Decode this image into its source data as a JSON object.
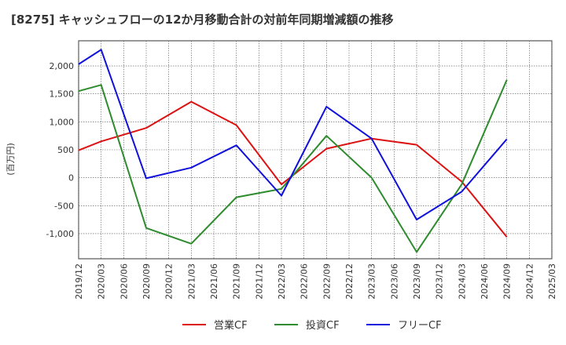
{
  "chart_data": {
    "type": "line",
    "title": "[8275]  キャッシュフローの12か月移動合計の対前年同期増減額の推移",
    "ylabel": "(百万円)",
    "xlabel": "",
    "categories": [
      "2019/12",
      "2020/03",
      "2020/06",
      "2020/09",
      "2020/12",
      "2021/03",
      "2021/06",
      "2021/09",
      "2021/12",
      "2022/03",
      "2022/06",
      "2022/09",
      "2022/12",
      "2023/03",
      "2023/06",
      "2023/09",
      "2023/12",
      "2024/03",
      "2024/06",
      "2024/09",
      "2024/12",
      "2025/03"
    ],
    "ylim": [
      -1450,
      2450
    ],
    "yticks": [
      -1000,
      -500,
      0,
      500,
      1000,
      1500,
      2000
    ],
    "ytick_labels": [
      "-1,000",
      "-500",
      "0",
      "500",
      "1,000",
      "1,500",
      "2,000"
    ],
    "grid": true,
    "legend_position": "bottom",
    "series": [
      {
        "name": "営業CF",
        "color": "#dd1111",
        "x": [
          "2019/12",
          "2020/03",
          "2020/09",
          "2021/03",
          "2021/09",
          "2022/03",
          "2022/09",
          "2023/03",
          "2023/09",
          "2024/03",
          "2024/09"
        ],
        "values": [
          490,
          650,
          890,
          1360,
          940,
          -120,
          520,
          700,
          590,
          -70,
          -1060
        ]
      },
      {
        "name": "投資CF",
        "color": "#2e8b2e",
        "x": [
          "2019/12",
          "2020/03",
          "2020/09",
          "2021/03",
          "2021/09",
          "2022/03",
          "2022/09",
          "2023/03",
          "2023/09",
          "2024/03",
          "2024/09"
        ],
        "values": [
          1550,
          1660,
          -900,
          -1180,
          -350,
          -200,
          750,
          0,
          -1330,
          -120,
          1750
        ]
      },
      {
        "name": "フリーCF",
        "color": "#1010dd",
        "x": [
          "2019/12",
          "2020/03",
          "2020/09",
          "2021/03",
          "2021/09",
          "2022/03",
          "2022/09",
          "2023/03",
          "2023/09",
          "2024/03",
          "2024/09"
        ],
        "values": [
          2030,
          2290,
          -10,
          180,
          580,
          -320,
          1270,
          700,
          -750,
          -250,
          690
        ]
      }
    ]
  }
}
